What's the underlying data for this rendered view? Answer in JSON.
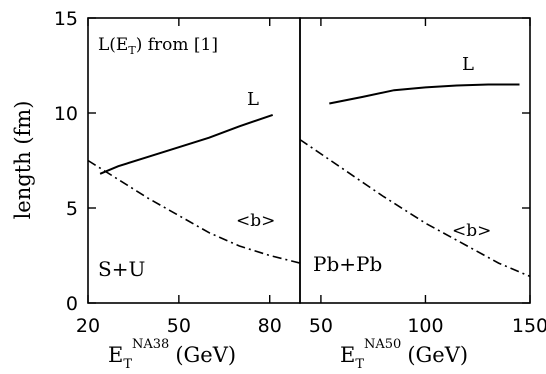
{
  "chart_data": [
    {
      "panel": "left",
      "type": "line",
      "xlim": [
        20,
        90
      ],
      "ylim": [
        0,
        15
      ],
      "x_ticks": [
        20,
        50,
        80
      ],
      "y_ticks": [
        0,
        5,
        10,
        15
      ],
      "ylabel": "length (fm)",
      "xlabel": {
        "main": "E",
        "sub": "T",
        "sup": "NA38",
        "unit": "(GeV)"
      },
      "annotation_top": {
        "main": "L(E",
        "sub": "T",
        "rest": ") from [1]"
      },
      "system_label": "S+U",
      "series": [
        {
          "name": "L",
          "style": "solid",
          "x": [
            24,
            30,
            40,
            50,
            60,
            70,
            81
          ],
          "y": [
            6.8,
            7.2,
            7.7,
            8.2,
            8.7,
            9.3,
            9.9
          ]
        },
        {
          "name": "<b>",
          "style": "dashdot",
          "x": [
            20,
            30,
            40,
            50,
            60,
            70,
            80,
            90
          ],
          "y": [
            7.5,
            6.5,
            5.5,
            4.6,
            3.7,
            3.0,
            2.5,
            2.1
          ]
        }
      ]
    },
    {
      "panel": "right",
      "type": "line",
      "xlim": [
        40,
        150
      ],
      "ylim": [
        0,
        15
      ],
      "x_ticks": [
        50,
        100,
        150
      ],
      "xlabel": {
        "main": "E",
        "sub": "T",
        "sup": "NA50",
        "unit": "(GeV)"
      },
      "system_label": "Pb+Pb",
      "series": [
        {
          "name": "L",
          "style": "solid",
          "x": [
            54,
            70,
            85,
            100,
            115,
            130,
            145
          ],
          "y": [
            10.5,
            10.85,
            11.2,
            11.35,
            11.45,
            11.5,
            11.5
          ]
        },
        {
          "name": "<b>",
          "style": "dashdot",
          "x": [
            40,
            60,
            80,
            100,
            120,
            135,
            150
          ],
          "y": [
            8.6,
            7.1,
            5.6,
            4.2,
            3.0,
            2.1,
            1.4
          ]
        }
      ]
    }
  ]
}
